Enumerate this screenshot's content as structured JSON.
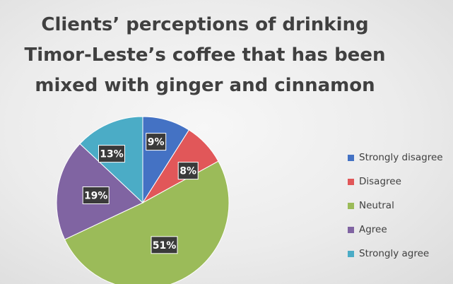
{
  "chart_data": {
    "type": "pie",
    "title": "Clients’ perceptions of drinking Timor-Leste’s coffee that has been mixed with ginger and cinnamon",
    "title_lines": [
      "Clients’ perceptions of drinking",
      "Timor-Leste’s coffee that has been",
      "mixed with ginger and cinnamon"
    ],
    "categories": [
      "Strongly disagree",
      "Disagree",
      "Neutral",
      "Agree",
      "Strongly agree"
    ],
    "values": [
      9,
      8,
      51,
      19,
      13
    ],
    "data_labels": [
      "9%",
      "8%",
      "51%",
      "19%",
      "13%"
    ],
    "unit": "%",
    "colors": [
      "#4472c4",
      "#e15759",
      "#9bbb59",
      "#8064a2",
      "#4bacc6"
    ],
    "legend": "right",
    "start": "top",
    "direction": "clockwise"
  }
}
